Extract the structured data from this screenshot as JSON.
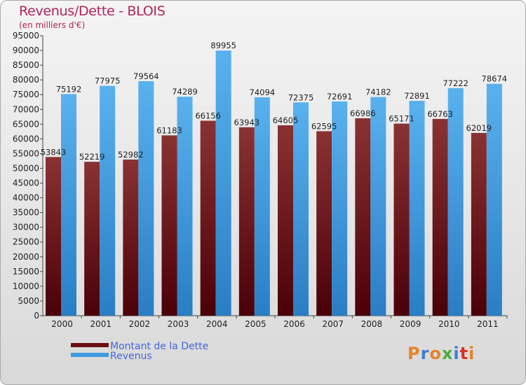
{
  "title": "Revenus/Dette - BLOIS",
  "subtitle": "(en milliers d'€)",
  "logo_text": "Proxiti",
  "colors": {
    "dette": "#6b0f14",
    "revenus": "#3f9be0",
    "title": "#b3245a",
    "legend_text": "#4466dd"
  },
  "chart_data": {
    "type": "bar",
    "categories": [
      "2000",
      "2001",
      "2002",
      "2003",
      "2004",
      "2005",
      "2006",
      "2007",
      "2008",
      "2009",
      "2010",
      "2011"
    ],
    "series": [
      {
        "name": "Montant de la Dette",
        "values": [
          53843,
          52219,
          52982,
          61183,
          66156,
          63943,
          64605,
          62595,
          66986,
          65171,
          66763,
          62019
        ],
        "labels": [
          "53843",
          "52219",
          "52982",
          "61183",
          "66156",
          "63943",
          "64605",
          "62595",
          "66986",
          "65171",
          "66763",
          "62019"
        ]
      },
      {
        "name": "Revenus",
        "values": [
          75192,
          77975,
          79564,
          74289,
          89955,
          74094,
          72375,
          72691,
          74182,
          72891,
          77222,
          78674
        ],
        "labels": [
          "75192",
          "77975",
          "79564",
          "74289",
          "89955",
          "74094",
          "72375",
          "72691",
          "74182",
          "72891",
          "77222",
          "78674"
        ]
      }
    ],
    "ylim": [
      0,
      95000
    ],
    "yticks": [
      0,
      5000,
      10000,
      15000,
      20000,
      25000,
      30000,
      35000,
      40000,
      45000,
      50000,
      55000,
      60000,
      65000,
      70000,
      75000,
      80000,
      85000,
      90000,
      95000
    ],
    "grid": false,
    "legend": "bottom-left"
  }
}
